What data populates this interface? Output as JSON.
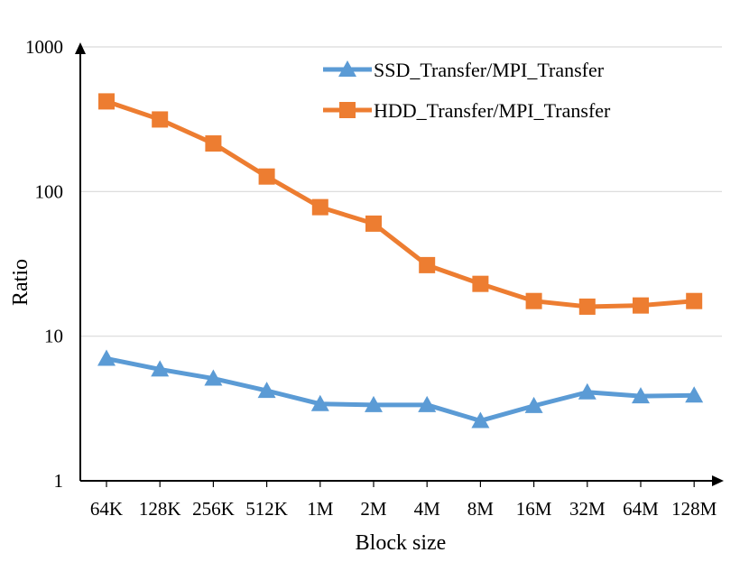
{
  "chart_data": {
    "type": "line",
    "xlabel": "Block size",
    "ylabel": "Ratio",
    "y_scale": "log",
    "ylim": [
      1,
      1000
    ],
    "y_ticks": [
      "1",
      "10",
      "100",
      "1000"
    ],
    "grid": "horizontal",
    "legend_position": "top-right",
    "categories": [
      "64K",
      "128K",
      "256K",
      "512K",
      "1M",
      "2M",
      "4M",
      "8M",
      "16M",
      "32M",
      "64M",
      "128M"
    ],
    "series": [
      {
        "name": "SSD_Transfer/MPI_Transfer",
        "marker": "triangle",
        "color": "#5B9BD5",
        "values": [
          7.0,
          5.9,
          5.1,
          4.2,
          3.4,
          3.35,
          3.35,
          2.6,
          3.3,
          4.1,
          3.85,
          3.9
        ]
      },
      {
        "name": "HDD_Transfer/MPI_Transfer",
        "marker": "square",
        "color": "#ED7D31",
        "values": [
          420,
          315,
          215,
          127,
          78,
          60,
          31,
          23,
          17.5,
          16,
          16.3,
          17.5
        ]
      }
    ]
  }
}
